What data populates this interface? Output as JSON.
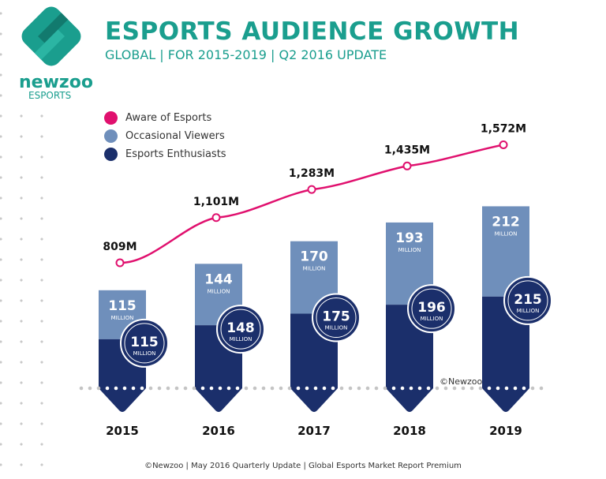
{
  "header": {
    "title": "ESPORTS AUDIENCE GROWTH",
    "subtitle": "GLOBAL | FOR 2015-2019 | Q2 2016 UPDATE"
  },
  "logo": {
    "word": "newzoo",
    "sub": "ESPORTS"
  },
  "colors": {
    "aware": "#e0106e",
    "occasional": "#6f8fbb",
    "enthusiasts": "#1b2f6b",
    "teal": "#1a9e8e"
  },
  "chart_data": {
    "type": "bar",
    "categories": [
      "2015",
      "2016",
      "2017",
      "2018",
      "2019"
    ],
    "series": [
      {
        "name": "Aware of Esports",
        "kind": "line",
        "values": [
          809,
          1101,
          1283,
          1435,
          1572
        ],
        "labels": [
          "809M",
          "1,101M",
          "1,283M",
          "1,435M",
          "1,572M"
        ]
      },
      {
        "name": "Occasional Viewers",
        "kind": "stacked-bar",
        "values": [
          115,
          144,
          170,
          193,
          212
        ]
      },
      {
        "name": "Esports Enthusiasts",
        "kind": "stacked-bar",
        "values": [
          115,
          148,
          175,
          196,
          215
        ]
      }
    ],
    "unit_label": "MILLION",
    "legend": "top-left",
    "credit": "©Newzoo"
  },
  "footer": "©Newzoo | May 2016 Quarterly Update | Global Esports Market Report Premium"
}
